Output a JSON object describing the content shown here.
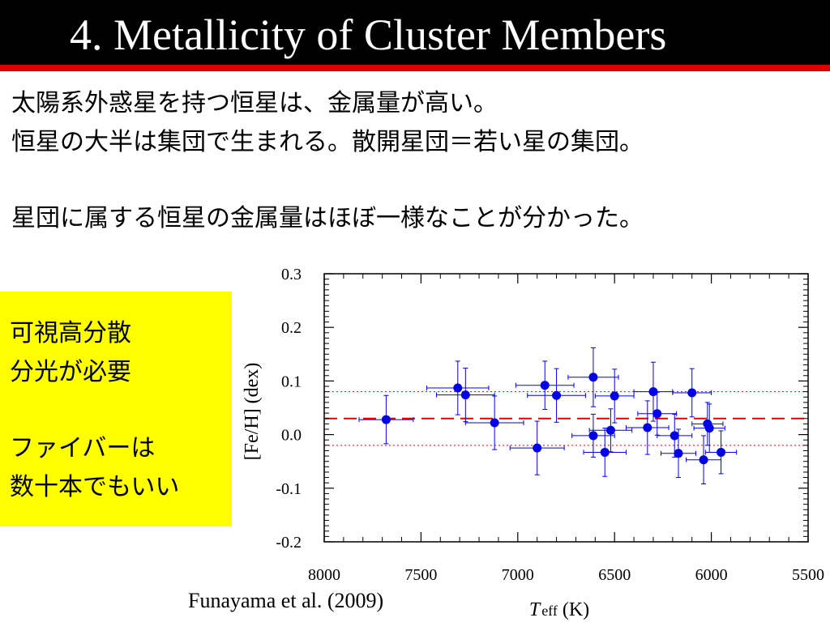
{
  "slide": {
    "title": "4. Metallicity of Cluster Members",
    "lines": [
      "太陽系外惑星を持つ恒星は、金属量が高い。",
      "恒星の大半は集団で生まれる。散開星団＝若い星の集団。",
      "星団に属する恒星の金属量はほぼ一様なことが分かった。"
    ],
    "note": [
      "可視高分散",
      "分光が必要",
      "ファイバーは",
      "数十本でもいい"
    ],
    "citation": "Funayama et al. (2009)"
  },
  "colors": {
    "title_bg": "#000000",
    "title_rule": "#e00000",
    "note_bg": "#ffff00",
    "point": "#0000e6",
    "ref_line": "#e00000"
  },
  "chart_data": {
    "type": "scatter",
    "xlabel_main": "T",
    "xlabel_sub": "eff",
    "xlabel_unit": "(K)",
    "ylabel": "[Fe/H] (dex)",
    "xlim": [
      8000,
      5500
    ],
    "ylim": [
      -0.2,
      0.3
    ],
    "x_ticks": [
      "8000",
      "7500",
      "7000",
      "6500",
      "6000",
      "5500"
    ],
    "y_ticks": [
      "-0.2",
      "-0.1",
      "0.0",
      "0.1",
      "0.2",
      "0.3"
    ],
    "mean_line": 0.03,
    "band_lines": [
      0.08,
      -0.02
    ],
    "points": [
      {
        "x": 7680,
        "y": 0.028,
        "xerr": 140,
        "yerr": 0.045
      },
      {
        "x": 7310,
        "y": 0.087,
        "xerr": 160,
        "yerr": 0.05
      },
      {
        "x": 7270,
        "y": 0.074,
        "xerr": 150,
        "yerr": 0.05
      },
      {
        "x": 7120,
        "y": 0.022,
        "xerr": 150,
        "yerr": 0.05
      },
      {
        "x": 6900,
        "y": -0.025,
        "xerr": 140,
        "yerr": 0.05
      },
      {
        "x": 6860,
        "y": 0.092,
        "xerr": 150,
        "yerr": 0.045
      },
      {
        "x": 6800,
        "y": 0.073,
        "xerr": 150,
        "yerr": 0.05
      },
      {
        "x": 6610,
        "y": 0.107,
        "xerr": 130,
        "yerr": 0.055
      },
      {
        "x": 6610,
        "y": -0.002,
        "xerr": 110,
        "yerr": 0.04
      },
      {
        "x": 6550,
        "y": -0.033,
        "xerr": 110,
        "yerr": 0.045
      },
      {
        "x": 6520,
        "y": 0.008,
        "xerr": 110,
        "yerr": 0.04
      },
      {
        "x": 6500,
        "y": 0.072,
        "xerr": 100,
        "yerr": 0.05
      },
      {
        "x": 6330,
        "y": 0.013,
        "xerr": 110,
        "yerr": 0.05
      },
      {
        "x": 6300,
        "y": 0.08,
        "xerr": 100,
        "yerr": 0.055
      },
      {
        "x": 6280,
        "y": 0.039,
        "xerr": 100,
        "yerr": 0.04
      },
      {
        "x": 6100,
        "y": 0.078,
        "xerr": 100,
        "yerr": 0.045
      },
      {
        "x": 6190,
        "y": -0.002,
        "xerr": 90,
        "yerr": 0.04
      },
      {
        "x": 6170,
        "y": -0.035,
        "xerr": 90,
        "yerr": 0.045
      },
      {
        "x": 6040,
        "y": -0.047,
        "xerr": 90,
        "yerr": 0.045
      },
      {
        "x": 6020,
        "y": 0.02,
        "xerr": 80,
        "yerr": 0.04
      },
      {
        "x": 6010,
        "y": 0.012,
        "xerr": 80,
        "yerr": 0.045
      },
      {
        "x": 5950,
        "y": -0.033,
        "xerr": 80,
        "yerr": 0.04
      }
    ]
  }
}
